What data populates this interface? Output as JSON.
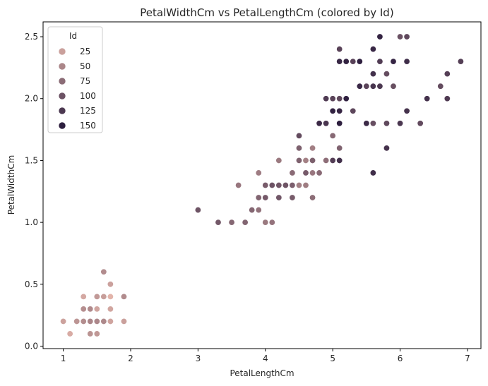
{
  "chart_data": {
    "type": "scatter",
    "title": "PetalWidthCm vs PetalLengthCm (colored by Id)",
    "xlabel": "PetalLengthCm",
    "ylabel": "PetalWidthCm",
    "xlim": [
      0.7,
      7.2
    ],
    "ylim": [
      -0.02,
      2.62
    ],
    "xticks": [
      1,
      2,
      3,
      4,
      5,
      6,
      7
    ],
    "yticks": [
      0.0,
      0.5,
      1.0,
      1.5,
      2.0,
      2.5
    ],
    "xtick_labels": [
      "1",
      "2",
      "3",
      "4",
      "5",
      "6",
      "7"
    ],
    "ytick_labels": [
      "0.0",
      "0.5",
      "1.0",
      "1.5",
      "2.0",
      "2.5"
    ],
    "grid": false,
    "legend": {
      "title": "Id",
      "placement": "top-left",
      "entries": [
        {
          "label": "25",
          "id": 25
        },
        {
          "label": "50",
          "id": 50
        },
        {
          "label": "75",
          "id": 75
        },
        {
          "label": "100",
          "id": 100
        },
        {
          "label": "125",
          "id": 125
        },
        {
          "label": "150",
          "id": 150
        }
      ]
    },
    "color_scale": {
      "min_id": 1,
      "max_id": 150,
      "low_color": "#e8b9ae",
      "high_color": "#2d1e3e"
    },
    "points": [
      {
        "id": 1,
        "x": 1.4,
        "y": 0.2
      },
      {
        "id": 2,
        "x": 1.4,
        "y": 0.2
      },
      {
        "id": 3,
        "x": 1.3,
        "y": 0.2
      },
      {
        "id": 4,
        "x": 1.5,
        "y": 0.2
      },
      {
        "id": 5,
        "x": 1.4,
        "y": 0.2
      },
      {
        "id": 6,
        "x": 1.7,
        "y": 0.4
      },
      {
        "id": 7,
        "x": 1.4,
        "y": 0.3
      },
      {
        "id": 8,
        "x": 1.5,
        "y": 0.2
      },
      {
        "id": 9,
        "x": 1.4,
        "y": 0.2
      },
      {
        "id": 10,
        "x": 1.5,
        "y": 0.1
      },
      {
        "id": 11,
        "x": 1.5,
        "y": 0.2
      },
      {
        "id": 12,
        "x": 1.6,
        "y": 0.2
      },
      {
        "id": 13,
        "x": 1.4,
        "y": 0.1
      },
      {
        "id": 14,
        "x": 1.1,
        "y": 0.1
      },
      {
        "id": 15,
        "x": 1.2,
        "y": 0.2
      },
      {
        "id": 16,
        "x": 1.5,
        "y": 0.4
      },
      {
        "id": 17,
        "x": 1.3,
        "y": 0.4
      },
      {
        "id": 18,
        "x": 1.4,
        "y": 0.3
      },
      {
        "id": 19,
        "x": 1.7,
        "y": 0.3
      },
      {
        "id": 20,
        "x": 1.5,
        "y": 0.3
      },
      {
        "id": 21,
        "x": 1.7,
        "y": 0.2
      },
      {
        "id": 22,
        "x": 1.5,
        "y": 0.4
      },
      {
        "id": 23,
        "x": 1.0,
        "y": 0.2
      },
      {
        "id": 24,
        "x": 1.7,
        "y": 0.5
      },
      {
        "id": 25,
        "x": 1.9,
        "y": 0.2
      },
      {
        "id": 26,
        "x": 1.6,
        "y": 0.2
      },
      {
        "id": 27,
        "x": 1.6,
        "y": 0.4
      },
      {
        "id": 28,
        "x": 1.5,
        "y": 0.2
      },
      {
        "id": 29,
        "x": 1.4,
        "y": 0.2
      },
      {
        "id": 30,
        "x": 1.6,
        "y": 0.2
      },
      {
        "id": 31,
        "x": 1.6,
        "y": 0.2
      },
      {
        "id": 32,
        "x": 1.5,
        "y": 0.4
      },
      {
        "id": 33,
        "x": 1.5,
        "y": 0.1
      },
      {
        "id": 34,
        "x": 1.4,
        "y": 0.2
      },
      {
        "id": 35,
        "x": 1.5,
        "y": 0.2
      },
      {
        "id": 36,
        "x": 1.2,
        "y": 0.2
      },
      {
        "id": 37,
        "x": 1.3,
        "y": 0.2
      },
      {
        "id": 38,
        "x": 1.4,
        "y": 0.1
      },
      {
        "id": 39,
        "x": 1.3,
        "y": 0.2
      },
      {
        "id": 40,
        "x": 1.5,
        "y": 0.2
      },
      {
        "id": 41,
        "x": 1.3,
        "y": 0.3
      },
      {
        "id": 42,
        "x": 1.3,
        "y": 0.3
      },
      {
        "id": 43,
        "x": 1.3,
        "y": 0.2
      },
      {
        "id": 44,
        "x": 1.6,
        "y": 0.6
      },
      {
        "id": 45,
        "x": 1.9,
        "y": 0.4
      },
      {
        "id": 46,
        "x": 1.4,
        "y": 0.3
      },
      {
        "id": 47,
        "x": 1.6,
        "y": 0.2
      },
      {
        "id": 48,
        "x": 1.4,
        "y": 0.2
      },
      {
        "id": 49,
        "x": 1.5,
        "y": 0.2
      },
      {
        "id": 50,
        "x": 1.4,
        "y": 0.2
      },
      {
        "id": 51,
        "x": 4.7,
        "y": 1.4
      },
      {
        "id": 52,
        "x": 4.5,
        "y": 1.5
      },
      {
        "id": 53,
        "x": 4.9,
        "y": 1.5
      },
      {
        "id": 54,
        "x": 4.0,
        "y": 1.3
      },
      {
        "id": 55,
        "x": 4.6,
        "y": 1.5
      },
      {
        "id": 56,
        "x": 4.5,
        "y": 1.3
      },
      {
        "id": 57,
        "x": 4.7,
        "y": 1.6
      },
      {
        "id": 58,
        "x": 3.3,
        "y": 1.0
      },
      {
        "id": 59,
        "x": 4.6,
        "y": 1.3
      },
      {
        "id": 60,
        "x": 3.9,
        "y": 1.4
      },
      {
        "id": 61,
        "x": 3.5,
        "y": 1.0
      },
      {
        "id": 62,
        "x": 4.2,
        "y": 1.5
      },
      {
        "id": 63,
        "x": 4.0,
        "y": 1.0
      },
      {
        "id": 64,
        "x": 4.7,
        "y": 1.4
      },
      {
        "id": 65,
        "x": 3.6,
        "y": 1.3
      },
      {
        "id": 66,
        "x": 4.4,
        "y": 1.4
      },
      {
        "id": 67,
        "x": 4.5,
        "y": 1.5
      },
      {
        "id": 68,
        "x": 4.1,
        "y": 1.0
      },
      {
        "id": 69,
        "x": 4.5,
        "y": 1.5
      },
      {
        "id": 70,
        "x": 3.9,
        "y": 1.1
      },
      {
        "id": 71,
        "x": 4.8,
        "y": 1.8
      },
      {
        "id": 72,
        "x": 4.0,
        "y": 1.3
      },
      {
        "id": 73,
        "x": 4.9,
        "y": 1.5
      },
      {
        "id": 74,
        "x": 4.7,
        "y": 1.2
      },
      {
        "id": 75,
        "x": 4.3,
        "y": 1.3
      },
      {
        "id": 76,
        "x": 4.4,
        "y": 1.4
      },
      {
        "id": 77,
        "x": 4.8,
        "y": 1.4
      },
      {
        "id": 78,
        "x": 5.0,
        "y": 1.7
      },
      {
        "id": 79,
        "x": 4.5,
        "y": 1.5
      },
      {
        "id": 80,
        "x": 3.5,
        "y": 1.0
      },
      {
        "id": 81,
        "x": 3.8,
        "y": 1.1
      },
      {
        "id": 82,
        "x": 3.7,
        "y": 1.0
      },
      {
        "id": 83,
        "x": 3.9,
        "y": 1.2
      },
      {
        "id": 84,
        "x": 5.1,
        "y": 1.6
      },
      {
        "id": 85,
        "x": 4.5,
        "y": 1.5
      },
      {
        "id": 86,
        "x": 4.5,
        "y": 1.6
      },
      {
        "id": 87,
        "x": 4.7,
        "y": 1.5
      },
      {
        "id": 88,
        "x": 4.4,
        "y": 1.3
      },
      {
        "id": 89,
        "x": 4.1,
        "y": 1.3
      },
      {
        "id": 90,
        "x": 4.0,
        "y": 1.3
      },
      {
        "id": 91,
        "x": 4.4,
        "y": 1.2
      },
      {
        "id": 92,
        "x": 4.6,
        "y": 1.4
      },
      {
        "id": 93,
        "x": 4.0,
        "y": 1.2
      },
      {
        "id": 94,
        "x": 3.3,
        "y": 1.0
      },
      {
        "id": 95,
        "x": 4.2,
        "y": 1.3
      },
      {
        "id": 96,
        "x": 4.2,
        "y": 1.2
      },
      {
        "id": 97,
        "x": 4.2,
        "y": 1.3
      },
      {
        "id": 98,
        "x": 4.3,
        "y": 1.3
      },
      {
        "id": 99,
        "x": 3.0,
        "y": 1.1
      },
      {
        "id": 100,
        "x": 4.1,
        "y": 1.3
      },
      {
        "id": 101,
        "x": 6.0,
        "y": 2.5
      },
      {
        "id": 102,
        "x": 5.1,
        "y": 1.9
      },
      {
        "id": 103,
        "x": 5.9,
        "y": 2.1
      },
      {
        "id": 104,
        "x": 5.6,
        "y": 1.8
      },
      {
        "id": 105,
        "x": 5.8,
        "y": 2.2
      },
      {
        "id": 106,
        "x": 6.6,
        "y": 2.1
      },
      {
        "id": 107,
        "x": 4.5,
        "y": 1.7
      },
      {
        "id": 108,
        "x": 6.3,
        "y": 1.8
      },
      {
        "id": 109,
        "x": 5.8,
        "y": 1.8
      },
      {
        "id": 110,
        "x": 6.1,
        "y": 2.5
      },
      {
        "id": 111,
        "x": 5.1,
        "y": 2.0
      },
      {
        "id": 112,
        "x": 5.3,
        "y": 1.9
      },
      {
        "id": 113,
        "x": 5.5,
        "y": 2.1
      },
      {
        "id": 114,
        "x": 5.0,
        "y": 2.0
      },
      {
        "id": 115,
        "x": 5.1,
        "y": 2.4
      },
      {
        "id": 116,
        "x": 5.3,
        "y": 2.3
      },
      {
        "id": 117,
        "x": 5.5,
        "y": 1.8
      },
      {
        "id": 118,
        "x": 6.7,
        "y": 2.2
      },
      {
        "id": 119,
        "x": 6.9,
        "y": 2.3
      },
      {
        "id": 120,
        "x": 5.0,
        "y": 1.5
      },
      {
        "id": 121,
        "x": 5.7,
        "y": 2.3
      },
      {
        "id": 122,
        "x": 4.9,
        "y": 2.0
      },
      {
        "id": 123,
        "x": 6.7,
        "y": 2.0
      },
      {
        "id": 124,
        "x": 4.9,
        "y": 1.8
      },
      {
        "id": 125,
        "x": 5.7,
        "y": 2.1
      },
      {
        "id": 126,
        "x": 6.0,
        "y": 1.8
      },
      {
        "id": 127,
        "x": 4.8,
        "y": 1.8
      },
      {
        "id": 128,
        "x": 4.9,
        "y": 1.8
      },
      {
        "id": 129,
        "x": 5.6,
        "y": 2.1
      },
      {
        "id": 130,
        "x": 5.8,
        "y": 1.6
      },
      {
        "id": 131,
        "x": 6.1,
        "y": 1.9
      },
      {
        "id": 132,
        "x": 6.4,
        "y": 2.0
      },
      {
        "id": 133,
        "x": 5.6,
        "y": 2.2
      },
      {
        "id": 134,
        "x": 5.1,
        "y": 1.5
      },
      {
        "id": 135,
        "x": 5.6,
        "y": 1.4
      },
      {
        "id": 136,
        "x": 6.1,
        "y": 2.3
      },
      {
        "id": 137,
        "x": 5.6,
        "y": 2.4
      },
      {
        "id": 138,
        "x": 5.5,
        "y": 1.8
      },
      {
        "id": 139,
        "x": 4.8,
        "y": 1.8
      },
      {
        "id": 140,
        "x": 5.4,
        "y": 2.1
      },
      {
        "id": 141,
        "x": 5.6,
        "y": 2.4
      },
      {
        "id": 142,
        "x": 5.1,
        "y": 2.3
      },
      {
        "id": 143,
        "x": 5.1,
        "y": 1.9
      },
      {
        "id": 144,
        "x": 5.9,
        "y": 2.3
      },
      {
        "id": 145,
        "x": 5.7,
        "y": 2.5
      },
      {
        "id": 146,
        "x": 5.2,
        "y": 2.3
      },
      {
        "id": 147,
        "x": 5.0,
        "y": 1.9
      },
      {
        "id": 148,
        "x": 5.2,
        "y": 2.0
      },
      {
        "id": 149,
        "x": 5.4,
        "y": 2.3
      },
      {
        "id": 150,
        "x": 5.1,
        "y": 1.8
      }
    ]
  }
}
